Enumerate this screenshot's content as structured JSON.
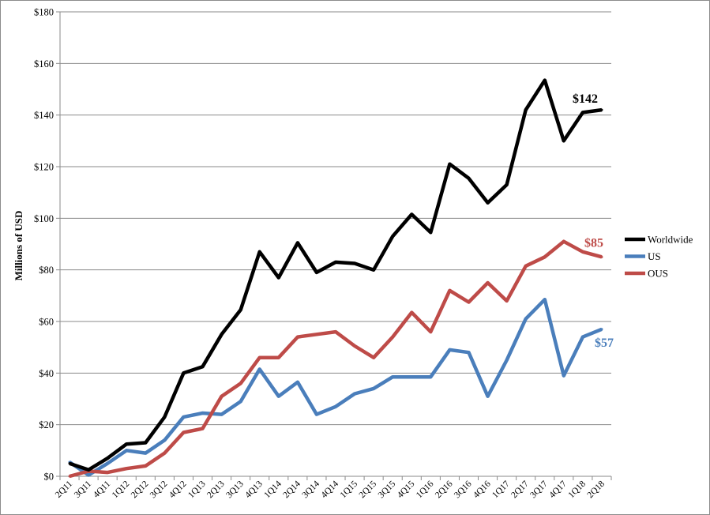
{
  "chart_data": {
    "type": "line",
    "title": "",
    "xlabel": "",
    "ylabel": "Millions of USD",
    "ylim": [
      0,
      180
    ],
    "yticks": [
      0,
      20,
      40,
      60,
      80,
      100,
      120,
      140,
      160,
      180
    ],
    "ytick_labels": [
      "$0",
      "$20",
      "$40",
      "$60",
      "$80",
      "$100",
      "$120",
      "$140",
      "$160",
      "$180"
    ],
    "grid": true,
    "legend_position": "right",
    "categories": [
      "2Q11",
      "3Q11",
      "4Q11",
      "1Q12",
      "2Q12",
      "3Q12",
      "4Q12",
      "1Q13",
      "2Q13",
      "3Q13",
      "4Q13",
      "1Q14",
      "2Q14",
      "3Q14",
      "4Q14",
      "1Q15",
      "2Q15",
      "3Q15",
      "4Q15",
      "1Q16",
      "2Q16",
      "3Q16",
      "4Q16",
      "1Q17",
      "2Q17",
      "3Q17",
      "4Q17",
      "1Q18",
      "2Q18"
    ],
    "series": [
      {
        "name": "Worldwide",
        "color": "#000000",
        "values": [
          5,
          2.5,
          7,
          12.5,
          13,
          23,
          40,
          42.5,
          55,
          64.5,
          87,
          77,
          90.5,
          79,
          83,
          82.5,
          80,
          93,
          101.5,
          94.5,
          121,
          115.5,
          106,
          113,
          142,
          153.5,
          130,
          141,
          142
        ],
        "end_label": "$142"
      },
      {
        "name": "US",
        "color": "#4a7ebb",
        "values": [
          5.5,
          0.5,
          5,
          10,
          9,
          14,
          23,
          24.5,
          24,
          29,
          41.5,
          31,
          36.5,
          24,
          27,
          32,
          34,
          38.5,
          38.5,
          38.5,
          49,
          48,
          31,
          45,
          61,
          68.5,
          39,
          54,
          57
        ],
        "end_label": "$57"
      },
      {
        "name": "OUS",
        "color": "#be4b48",
        "values": [
          0,
          2,
          1.5,
          3,
          4,
          9,
          17,
          18.5,
          31,
          36,
          46,
          46,
          54,
          55,
          56,
          50.5,
          46,
          54,
          63.5,
          56,
          72,
          67.5,
          75,
          68,
          81.5,
          85,
          91,
          87,
          85
        ],
        "end_label": "$85"
      }
    ]
  }
}
